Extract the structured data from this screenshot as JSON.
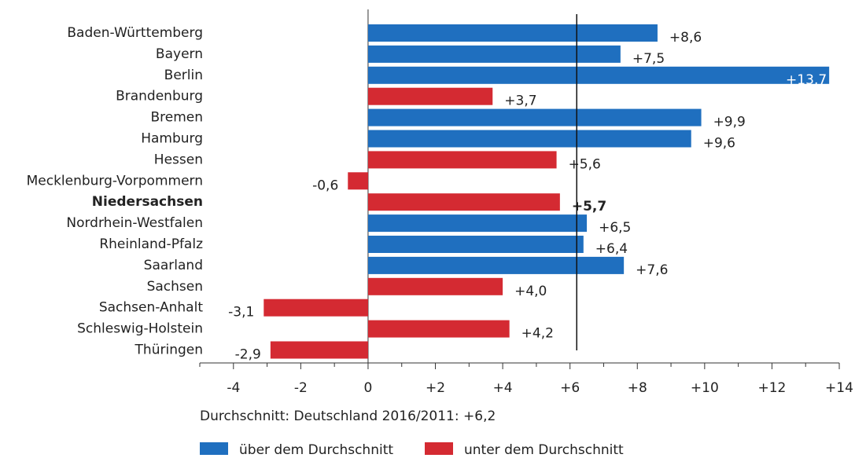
{
  "chart_data": {
    "type": "bar",
    "orientation": "horizontal",
    "categories": [
      "Baden-Württemberg",
      "Bayern",
      "Berlin",
      "Brandenburg",
      "Bremen",
      "Hamburg",
      "Hessen",
      "Mecklenburg-Vorpommern",
      "Niedersachsen",
      "Nordrhein-Westfalen",
      "Rheinland-Pfalz",
      "Saarland",
      "Sachsen",
      "Sachsen-Anhalt",
      "Schleswig-Holstein",
      "Thüringen"
    ],
    "highlight": "Niedersachsen",
    "series": [
      {
        "name": "über dem Durchschnitt",
        "color": "#1f6fbf",
        "values": [
          8.6,
          7.5,
          13.7,
          null,
          9.9,
          9.6,
          null,
          null,
          null,
          6.5,
          6.4,
          7.6,
          null,
          null,
          null,
          null
        ],
        "value_labels": [
          "+8,6",
          "+7,5",
          "+13,7",
          null,
          "+9,9",
          "+9,6",
          null,
          null,
          null,
          "+6,5",
          "+6,4",
          "+7,6",
          null,
          null,
          null,
          null
        ]
      },
      {
        "name": "unter dem Durchschnitt",
        "color": "#d42a32",
        "values": [
          null,
          null,
          null,
          3.7,
          null,
          null,
          5.6,
          -0.6,
          5.7,
          null,
          null,
          null,
          4.0,
          -3.1,
          4.2,
          -2.9
        ],
        "value_labels": [
          null,
          null,
          null,
          "+3,7",
          null,
          null,
          "+5,6",
          "-0,6",
          "+5,7",
          null,
          null,
          null,
          "+4,0",
          "-3,1",
          "+4,2",
          "-2,9"
        ]
      }
    ],
    "average": {
      "value": 6.2,
      "label": "Durchschnitt: Deutschland 2016/2011: +6,2"
    },
    "xlim": [
      -5,
      14
    ],
    "xticks": [
      -4,
      -2,
      0,
      {
        "value": 2,
        "label": "+2"
      },
      {
        "value": 4,
        "label": "+4"
      },
      {
        "value": 6,
        "label": "+6"
      },
      {
        "value": 8,
        "label": "+8"
      },
      {
        "value": 10,
        "label": "+10"
      },
      {
        "value": 12,
        "label": "+12"
      },
      {
        "value": 14,
        "label": "+14"
      }
    ],
    "xminorticks": [
      -5,
      -3,
      -1,
      1,
      3,
      5,
      7,
      9,
      11,
      13
    ]
  }
}
